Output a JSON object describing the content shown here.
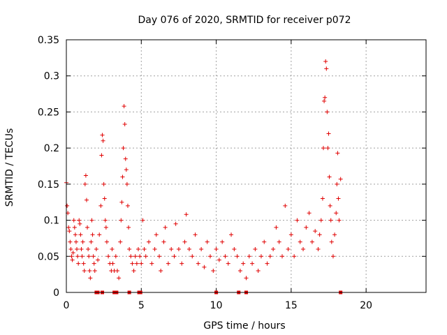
{
  "chart_data": {
    "type": "scatter",
    "title": "Day 076 of 2020, SRMTID for receiver p072",
    "xlabel": "GPS time / hours",
    "ylabel": "SRMTID / TECUs",
    "xlim": [
      0,
      24
    ],
    "ylim": [
      0,
      0.35
    ],
    "x_ticks": [
      0,
      5,
      10,
      15,
      20
    ],
    "y_ticks": [
      0,
      0.05,
      0.1,
      0.15,
      0.2,
      0.25,
      0.3,
      0.35
    ],
    "x_tick_labels": [
      "0",
      "5",
      "10",
      "15",
      "20"
    ],
    "y_tick_labels": [
      "0",
      "0.05",
      "0.1",
      "0.15",
      "0.2",
      "0.25",
      "0.3",
      "0.35"
    ],
    "grid": true,
    "marker": "+",
    "color": "#e00000",
    "note": "Point cloud approximated from the plotted scatter; dense trace from ~0 h to ~18.5 h.",
    "series": [
      {
        "name": "SRMTID",
        "points": [
          [
            0.0,
            0.152
          ],
          [
            0.05,
            0.12
          ],
          [
            0.1,
            0.11
          ],
          [
            0.15,
            0.09
          ],
          [
            0.2,
            0.085
          ],
          [
            0.25,
            0.07
          ],
          [
            0.3,
            0.06
          ],
          [
            0.35,
            0.05
          ],
          [
            0.4,
            0.045
          ],
          [
            0.45,
            0.055
          ],
          [
            0.5,
            0.1
          ],
          [
            0.55,
            0.09
          ],
          [
            0.6,
            0.08
          ],
          [
            0.65,
            0.07
          ],
          [
            0.7,
            0.06
          ],
          [
            0.75,
            0.05
          ],
          [
            0.8,
            0.04
          ],
          [
            0.85,
            0.1
          ],
          [
            0.9,
            0.095
          ],
          [
            0.95,
            0.08
          ],
          [
            1.0,
            0.06
          ],
          [
            1.05,
            0.05
          ],
          [
            1.1,
            0.07
          ],
          [
            1.15,
            0.04
          ],
          [
            1.2,
            0.03
          ],
          [
            1.25,
            0.15
          ],
          [
            1.3,
            0.162
          ],
          [
            1.35,
            0.128
          ],
          [
            1.4,
            0.09
          ],
          [
            1.45,
            0.06
          ],
          [
            1.5,
            0.05
          ],
          [
            1.55,
            0.03
          ],
          [
            1.6,
            0.02
          ],
          [
            1.65,
            0.07
          ],
          [
            1.7,
            0.1
          ],
          [
            1.75,
            0.08
          ],
          [
            1.8,
            0.05
          ],
          [
            1.85,
            0.04
          ],
          [
            1.9,
            0.03
          ],
          [
            2.0,
            0.06
          ],
          [
            2.1,
            0.045
          ],
          [
            2.2,
            0.08
          ],
          [
            2.3,
            0.12
          ],
          [
            2.35,
            0.19
          ],
          [
            2.4,
            0.218
          ],
          [
            2.45,
            0.21
          ],
          [
            2.5,
            0.15
          ],
          [
            2.55,
            0.13
          ],
          [
            2.6,
            0.1
          ],
          [
            2.65,
            0.09
          ],
          [
            2.7,
            0.07
          ],
          [
            2.8,
            0.05
          ],
          [
            2.9,
            0.04
          ],
          [
            3.0,
            0.03
          ],
          [
            3.05,
            0.06
          ],
          [
            3.1,
            0.04
          ],
          [
            3.2,
            0.03
          ],
          [
            3.3,
            0.05
          ],
          [
            3.4,
            0.03
          ],
          [
            3.5,
            0.02
          ],
          [
            3.6,
            0.07
          ],
          [
            3.65,
            0.1
          ],
          [
            3.7,
            0.125
          ],
          [
            3.75,
            0.16
          ],
          [
            3.8,
            0.2
          ],
          [
            3.85,
            0.258
          ],
          [
            3.9,
            0.233
          ],
          [
            3.95,
            0.185
          ],
          [
            4.0,
            0.17
          ],
          [
            4.05,
            0.15
          ],
          [
            4.1,
            0.12
          ],
          [
            4.15,
            0.09
          ],
          [
            4.2,
            0.06
          ],
          [
            4.3,
            0.05
          ],
          [
            4.4,
            0.04
          ],
          [
            4.5,
            0.03
          ],
          [
            4.6,
            0.05
          ],
          [
            4.7,
            0.04
          ],
          [
            4.8,
            0.06
          ],
          [
            4.9,
            0.05
          ],
          [
            5.0,
            0.04
          ],
          [
            5.1,
            0.1
          ],
          [
            5.2,
            0.06
          ],
          [
            5.3,
            0.05
          ],
          [
            5.5,
            0.07
          ],
          [
            5.7,
            0.04
          ],
          [
            5.9,
            0.06
          ],
          [
            6.0,
            0.08
          ],
          [
            6.2,
            0.05
          ],
          [
            6.3,
            0.03
          ],
          [
            6.5,
            0.07
          ],
          [
            6.6,
            0.09
          ],
          [
            6.8,
            0.04
          ],
          [
            7.0,
            0.06
          ],
          [
            7.2,
            0.05
          ],
          [
            7.3,
            0.095
          ],
          [
            7.5,
            0.06
          ],
          [
            7.7,
            0.04
          ],
          [
            7.9,
            0.07
          ],
          [
            8.0,
            0.108
          ],
          [
            8.2,
            0.06
          ],
          [
            8.4,
            0.05
          ],
          [
            8.6,
            0.08
          ],
          [
            8.8,
            0.04
          ],
          [
            9.0,
            0.06
          ],
          [
            9.2,
            0.035
          ],
          [
            9.4,
            0.07
          ],
          [
            9.6,
            0.05
          ],
          [
            9.8,
            0.03
          ],
          [
            10.0,
            0.06
          ],
          [
            10.2,
            0.045
          ],
          [
            10.4,
            0.07
          ],
          [
            10.6,
            0.05
          ],
          [
            10.8,
            0.04
          ],
          [
            11.0,
            0.08
          ],
          [
            11.2,
            0.06
          ],
          [
            11.4,
            0.05
          ],
          [
            11.6,
            0.03
          ],
          [
            11.8,
            0.04
          ],
          [
            12.0,
            0.02
          ],
          [
            12.2,
            0.05
          ],
          [
            12.4,
            0.04
          ],
          [
            12.6,
            0.06
          ],
          [
            12.8,
            0.03
          ],
          [
            13.0,
            0.05
          ],
          [
            13.2,
            0.07
          ],
          [
            13.4,
            0.04
          ],
          [
            13.6,
            0.05
          ],
          [
            13.8,
            0.06
          ],
          [
            14.0,
            0.09
          ],
          [
            14.2,
            0.07
          ],
          [
            14.4,
            0.05
          ],
          [
            14.6,
            0.12
          ],
          [
            14.8,
            0.06
          ],
          [
            15.0,
            0.08
          ],
          [
            15.2,
            0.05
          ],
          [
            15.4,
            0.1
          ],
          [
            15.6,
            0.07
          ],
          [
            15.8,
            0.06
          ],
          [
            16.0,
            0.09
          ],
          [
            16.2,
            0.11
          ],
          [
            16.4,
            0.07
          ],
          [
            16.6,
            0.085
          ],
          [
            16.8,
            0.06
          ],
          [
            16.9,
            0.08
          ],
          [
            17.0,
            0.1
          ],
          [
            17.1,
            0.13
          ],
          [
            17.15,
            0.2
          ],
          [
            17.2,
            0.265
          ],
          [
            17.25,
            0.27
          ],
          [
            17.3,
            0.32
          ],
          [
            17.35,
            0.31
          ],
          [
            17.4,
            0.25
          ],
          [
            17.45,
            0.2
          ],
          [
            17.5,
            0.22
          ],
          [
            17.55,
            0.16
          ],
          [
            17.6,
            0.12
          ],
          [
            17.65,
            0.1
          ],
          [
            17.7,
            0.07
          ],
          [
            17.8,
            0.05
          ],
          [
            17.9,
            0.08
          ],
          [
            18.0,
            0.11
          ],
          [
            18.05,
            0.15
          ],
          [
            18.1,
            0.193
          ],
          [
            18.15,
            0.13
          ],
          [
            18.2,
            0.1
          ],
          [
            18.3,
            0.157
          ]
        ],
        "baseline_points_x": [
          2.0,
          2.1,
          2.4,
          3.2,
          3.35,
          4.2,
          4.85,
          4.95,
          10.0,
          11.5,
          12.0,
          18.3
        ]
      }
    ]
  }
}
